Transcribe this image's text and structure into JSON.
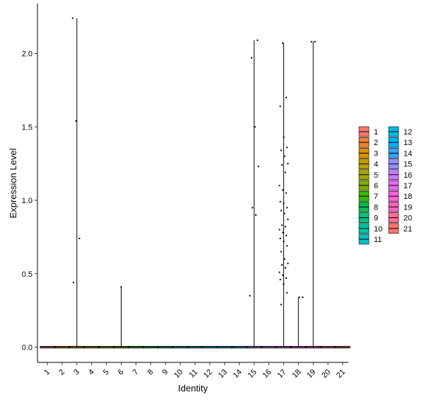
{
  "chart_data": {
    "type": "violin",
    "xlabel": "Identity",
    "ylabel": "Expression Level",
    "categories": [
      "1",
      "2",
      "3",
      "4",
      "5",
      "6",
      "7",
      "8",
      "9",
      "10",
      "11",
      "12",
      "13",
      "14",
      "15",
      "16",
      "17",
      "18",
      "19",
      "20",
      "21"
    ],
    "ylim": [
      -0.1,
      2.35
    ],
    "yticks": [
      0.0,
      0.5,
      1.0,
      1.5,
      2.0
    ],
    "ytick_labels": [
      "0.0",
      "0.5",
      "1.0",
      "1.5",
      "2.0"
    ],
    "grid": false,
    "legend_position": "right",
    "series_colors": [
      "#F8766D",
      "#EA8331",
      "#D89000",
      "#C09B00",
      "#A3A500",
      "#7CAE00",
      "#39B600",
      "#00BB4E",
      "#00BF7D",
      "#00C1A3",
      "#00BFC4",
      "#00BAE0",
      "#00B0F6",
      "#35A2FF",
      "#9590FF",
      "#C77CFF",
      "#E76BF3",
      "#FA62DB",
      "#FF62BC",
      "#FF6C91",
      "#F8766D"
    ],
    "violin_max": [
      0,
      0,
      2.24,
      0,
      0,
      0.41,
      0,
      0,
      0,
      0,
      0,
      0,
      0,
      0,
      2.09,
      0,
      2.07,
      0.34,
      2.08,
      0,
      0
    ],
    "points": [
      {
        "cat": 3,
        "y": 2.24
      },
      {
        "cat": 3,
        "y": 1.54
      },
      {
        "cat": 3,
        "y": 0.74
      },
      {
        "cat": 3,
        "y": 0.44
      },
      {
        "cat": 6,
        "y": 0.41
      },
      {
        "cat": 15,
        "y": 2.09
      },
      {
        "cat": 15,
        "y": 1.97
      },
      {
        "cat": 15,
        "y": 1.5
      },
      {
        "cat": 15,
        "y": 1.23
      },
      {
        "cat": 15,
        "y": 0.95
      },
      {
        "cat": 15,
        "y": 0.9
      },
      {
        "cat": 15,
        "y": 0.35
      },
      {
        "cat": 17,
        "y": 2.07
      },
      {
        "cat": 17,
        "y": 1.7
      },
      {
        "cat": 17,
        "y": 1.64
      },
      {
        "cat": 17,
        "y": 1.43
      },
      {
        "cat": 17,
        "y": 1.36
      },
      {
        "cat": 17,
        "y": 1.34
      },
      {
        "cat": 17,
        "y": 1.3
      },
      {
        "cat": 17,
        "y": 1.25
      },
      {
        "cat": 17,
        "y": 1.24
      },
      {
        "cat": 17,
        "y": 1.19
      },
      {
        "cat": 17,
        "y": 1.1
      },
      {
        "cat": 17,
        "y": 1.07
      },
      {
        "cat": 17,
        "y": 1.05
      },
      {
        "cat": 17,
        "y": 0.99
      },
      {
        "cat": 17,
        "y": 0.98
      },
      {
        "cat": 17,
        "y": 0.95
      },
      {
        "cat": 17,
        "y": 0.93
      },
      {
        "cat": 17,
        "y": 0.91
      },
      {
        "cat": 17,
        "y": 0.87
      },
      {
        "cat": 17,
        "y": 0.83
      },
      {
        "cat": 17,
        "y": 0.82
      },
      {
        "cat": 17,
        "y": 0.8
      },
      {
        "cat": 17,
        "y": 0.78
      },
      {
        "cat": 17,
        "y": 0.76
      },
      {
        "cat": 17,
        "y": 0.74
      },
      {
        "cat": 17,
        "y": 0.72
      },
      {
        "cat": 17,
        "y": 0.69
      },
      {
        "cat": 17,
        "y": 0.65
      },
      {
        "cat": 17,
        "y": 0.6
      },
      {
        "cat": 17,
        "y": 0.57
      },
      {
        "cat": 17,
        "y": 0.56
      },
      {
        "cat": 17,
        "y": 0.54
      },
      {
        "cat": 17,
        "y": 0.51
      },
      {
        "cat": 17,
        "y": 0.49
      },
      {
        "cat": 17,
        "y": 0.47
      },
      {
        "cat": 17,
        "y": 0.46
      },
      {
        "cat": 17,
        "y": 0.43
      },
      {
        "cat": 17,
        "y": 0.37
      },
      {
        "cat": 17,
        "y": 0.29
      },
      {
        "cat": 18,
        "y": 0.34
      },
      {
        "cat": 18,
        "y": 0.34
      },
      {
        "cat": 19,
        "y": 2.08
      },
      {
        "cat": 19,
        "y": 2.08
      }
    ],
    "legend": {
      "columns": [
        [
          "1",
          "2",
          "3",
          "4",
          "5",
          "6",
          "7",
          "8",
          "9",
          "10",
          "11"
        ],
        [
          "12",
          "13",
          "14",
          "15",
          "16",
          "17",
          "18",
          "19",
          "20",
          "21"
        ]
      ]
    }
  }
}
